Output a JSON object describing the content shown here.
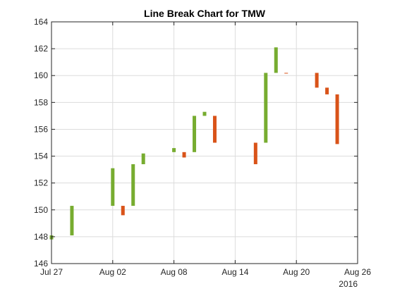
{
  "chart_data": {
    "type": "bar",
    "subtype": "line-break",
    "title": "Line Break Chart for TMW",
    "xlabel": "",
    "ylabel": "",
    "ylim": [
      146,
      164
    ],
    "yticks": [
      146,
      148,
      150,
      152,
      154,
      156,
      158,
      160,
      162,
      164
    ],
    "xlim": [
      "2016-07-27",
      "2016-08-26"
    ],
    "xticks": [
      {
        "date": "2016-07-27",
        "label": "Jul 27"
      },
      {
        "date": "2016-08-02",
        "label": "Aug 02"
      },
      {
        "date": "2016-08-08",
        "label": "Aug 08"
      },
      {
        "date": "2016-08-14",
        "label": "Aug 14"
      },
      {
        "date": "2016-08-20",
        "label": "Aug 20"
      },
      {
        "date": "2016-08-26",
        "label": "Aug 26"
      }
    ],
    "year_label": "2016",
    "grid": true,
    "colors": {
      "up": "#77AC30",
      "down": "#D95319"
    },
    "bricks": [
      {
        "date": "2016-07-27",
        "low": 147.8,
        "high": 148.1,
        "direction": "up"
      },
      {
        "date": "2016-07-29",
        "low": 148.1,
        "high": 150.3,
        "direction": "up"
      },
      {
        "date": "2016-08-02",
        "low": 150.3,
        "high": 153.1,
        "direction": "up"
      },
      {
        "date": "2016-08-03",
        "low": 149.6,
        "high": 150.3,
        "direction": "down"
      },
      {
        "date": "2016-08-04",
        "low": 150.3,
        "high": 153.4,
        "direction": "up"
      },
      {
        "date": "2016-08-05",
        "low": 153.4,
        "high": 154.2,
        "direction": "up"
      },
      {
        "date": "2016-08-08",
        "low": 154.3,
        "high": 154.6,
        "direction": "up"
      },
      {
        "date": "2016-08-09",
        "low": 153.9,
        "high": 154.3,
        "direction": "down"
      },
      {
        "date": "2016-08-10",
        "low": 154.3,
        "high": 157.0,
        "direction": "up"
      },
      {
        "date": "2016-08-11",
        "low": 157.0,
        "high": 157.3,
        "direction": "up"
      },
      {
        "date": "2016-08-12",
        "low": 155.0,
        "high": 157.0,
        "direction": "down"
      },
      {
        "date": "2016-08-16",
        "low": 153.4,
        "high": 155.0,
        "direction": "down"
      },
      {
        "date": "2016-08-17",
        "low": 155.0,
        "high": 160.2,
        "direction": "up"
      },
      {
        "date": "2016-08-18",
        "low": 160.2,
        "high": 162.1,
        "direction": "up"
      },
      {
        "date": "2016-08-19",
        "low": 160.15,
        "high": 160.2,
        "direction": "down"
      },
      {
        "date": "2016-08-22",
        "low": 159.1,
        "high": 160.2,
        "direction": "down"
      },
      {
        "date": "2016-08-23",
        "low": 158.6,
        "high": 159.1,
        "direction": "down"
      },
      {
        "date": "2016-08-24",
        "low": 154.9,
        "high": 158.6,
        "direction": "down"
      }
    ]
  }
}
